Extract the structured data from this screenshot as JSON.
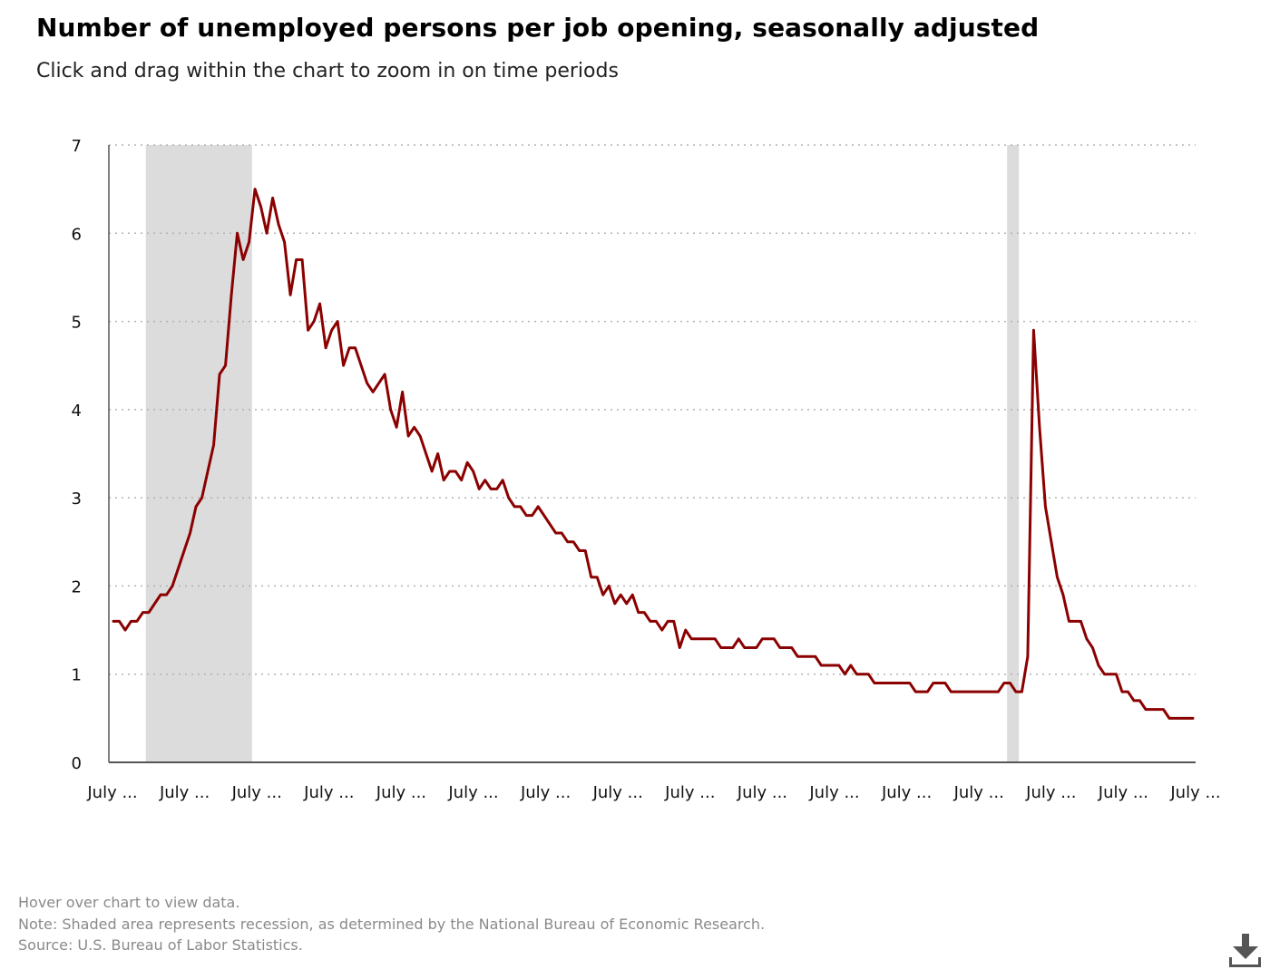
{
  "header": {
    "title": "Number of unemployed persons per job opening, seasonally adjusted",
    "subtitle": "Click and drag within the chart to zoom in on time periods"
  },
  "footer": {
    "hover_note": "Hover over chart to view data.",
    "shading_note": "Note: Shaded area represents recession, as determined by the National Bureau of Economic Research.",
    "source": "Source: U.S. Bureau of Labor Statistics."
  },
  "download": {
    "icon": "download-icon"
  },
  "colors": {
    "series": "#8b0000",
    "recession": "#dcdcdc",
    "grid": "#b3b3b3",
    "axis": "#555555"
  },
  "chart_data": {
    "type": "line",
    "title": "Number of unemployed persons per job opening, seasonally adjusted",
    "xlabel": "",
    "ylabel": "",
    "ylim": [
      0,
      7
    ],
    "yticks": [
      0,
      1,
      2,
      3,
      4,
      5,
      6,
      7
    ],
    "grid": true,
    "grid_style": "dotted-horizontal",
    "xticks": [
      "July ...",
      "July ...",
      "July ...",
      "July ...",
      "July ...",
      "July ...",
      "July ...",
      "July ...",
      "July ...",
      "July ...",
      "July ...",
      "July ...",
      "July ...",
      "July ...",
      "July ...",
      "July ..."
    ],
    "recessions": [
      [
        5.5,
        23.5
      ],
      [
        151.5,
        153.5
      ]
    ],
    "series": [
      {
        "values": [
          1.6,
          1.6,
          1.5,
          1.6,
          1.6,
          1.7,
          1.7,
          1.8,
          1.9,
          1.9,
          2.0,
          2.2,
          2.4,
          2.6,
          2.9,
          3.0,
          3.3,
          3.6,
          4.4,
          4.5,
          5.3,
          6.0,
          5.7,
          5.9,
          6.5,
          6.3,
          6.0,
          6.4,
          6.1,
          5.9,
          5.3,
          5.7,
          5.7,
          4.9,
          5.0,
          5.2,
          4.7,
          4.9,
          5.0,
          4.5,
          4.7,
          4.7,
          4.5,
          4.3,
          4.2,
          4.3,
          4.4,
          4.0,
          3.8,
          4.2,
          3.7,
          3.8,
          3.7,
          3.5,
          3.3,
          3.5,
          3.2,
          3.3,
          3.3,
          3.2,
          3.4,
          3.3,
          3.1,
          3.2,
          3.1,
          3.1,
          3.2,
          3.0,
          2.9,
          2.9,
          2.8,
          2.8,
          2.9,
          2.8,
          2.7,
          2.6,
          2.6,
          2.5,
          2.5,
          2.4,
          2.4,
          2.1,
          2.1,
          1.9,
          2.0,
          1.8,
          1.9,
          1.8,
          1.9,
          1.7,
          1.7,
          1.6,
          1.6,
          1.5,
          1.6,
          1.6,
          1.3,
          1.5,
          1.4,
          1.4,
          1.4,
          1.4,
          1.4,
          1.3,
          1.3,
          1.3,
          1.4,
          1.3,
          1.3,
          1.3,
          1.4,
          1.4,
          1.4,
          1.3,
          1.3,
          1.3,
          1.2,
          1.2,
          1.2,
          1.2,
          1.1,
          1.1,
          1.1,
          1.1,
          1.0,
          1.1,
          1.0,
          1.0,
          1.0,
          0.9,
          0.9,
          0.9,
          0.9,
          0.9,
          0.9,
          0.9,
          0.8,
          0.8,
          0.8,
          0.9,
          0.9,
          0.9,
          0.8,
          0.8,
          0.8,
          0.8,
          0.8,
          0.8,
          0.8,
          0.8,
          0.8,
          0.9,
          0.9,
          0.8,
          0.8,
          1.2,
          4.9,
          3.8,
          2.9,
          2.5,
          2.1,
          1.9,
          1.6,
          1.6,
          1.6,
          1.4,
          1.3,
          1.1,
          1.0,
          1.0,
          1.0,
          0.8,
          0.8,
          0.7,
          0.7,
          0.6,
          0.6,
          0.6,
          0.6,
          0.5,
          0.5,
          0.5,
          0.5,
          0.5
        ]
      }
    ]
  }
}
